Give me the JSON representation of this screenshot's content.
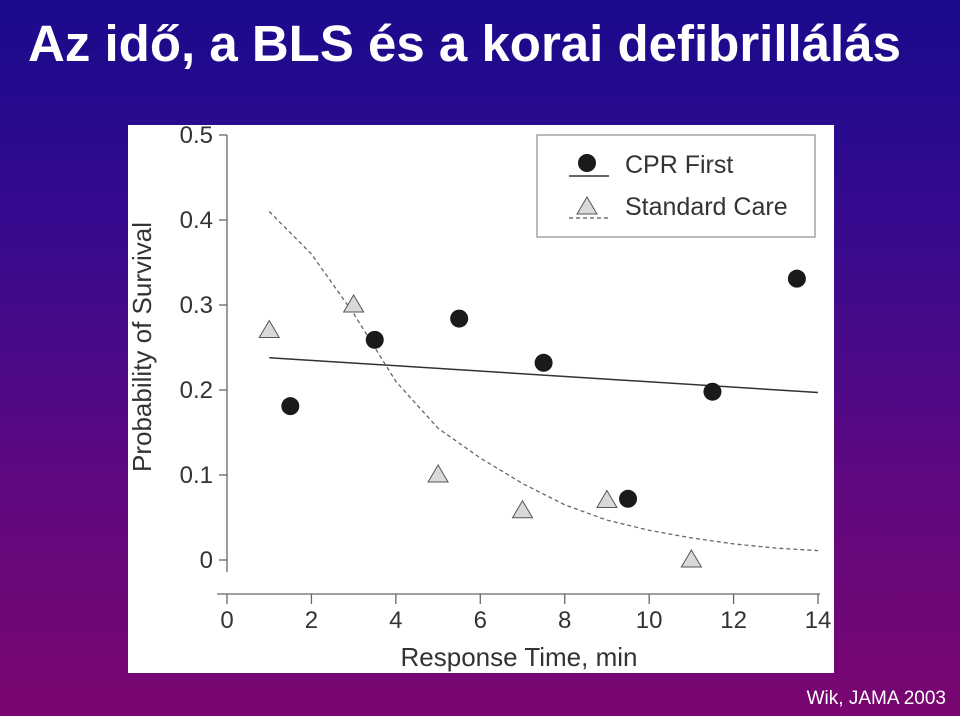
{
  "slide": {
    "title": "Az idő, a BLS és a korai defibrillálás",
    "citation": "Wik, JAMA 2003"
  },
  "chart_data": {
    "type": "scatter",
    "title": "",
    "xlabel": "Response Time, min",
    "ylabel": "Probability of Survival",
    "xlim": [
      0,
      14
    ],
    "ylim": [
      0,
      0.5
    ],
    "xticks": [
      0,
      2,
      4,
      6,
      8,
      10,
      12,
      14
    ],
    "yticks": [
      0,
      0.1,
      0.2,
      0.3,
      0.4,
      0.5
    ],
    "ytick_labels": [
      "0",
      "0.1",
      "0.2",
      "0.3",
      "0.4",
      "0.5"
    ],
    "legend_position": "top-right",
    "series": [
      {
        "name": "CPR First",
        "marker": "circle",
        "color": "#1a1a1a",
        "points": [
          {
            "x": 1.5,
            "y": 0.181
          },
          {
            "x": 3.5,
            "y": 0.259
          },
          {
            "x": 5.5,
            "y": 0.284
          },
          {
            "x": 7.5,
            "y": 0.232
          },
          {
            "x": 9.5,
            "y": 0.072
          },
          {
            "x": 11.5,
            "y": 0.198
          },
          {
            "x": 13.5,
            "y": 0.331
          }
        ],
        "fit_line": {
          "style": "solid",
          "points": [
            [
              1,
              0.238
            ],
            [
              14,
              0.197
            ]
          ]
        }
      },
      {
        "name": "Standard Care",
        "marker": "triangle",
        "color": "#d9d9d9",
        "points": [
          {
            "x": 1,
            "y": 0.27
          },
          {
            "x": 3,
            "y": 0.3
          },
          {
            "x": 5,
            "y": 0.1
          },
          {
            "x": 7,
            "y": 0.058
          },
          {
            "x": 9,
            "y": 0.07
          },
          {
            "x": 11,
            "y": 0.0
          }
        ],
        "fit_line": {
          "style": "dashed",
          "points": [
            [
              1,
              0.41
            ],
            [
              2,
              0.36
            ],
            [
              3,
              0.29
            ],
            [
              4,
              0.21
            ],
            [
              5,
              0.155
            ],
            [
              6,
              0.12
            ],
            [
              7,
              0.09
            ],
            [
              8,
              0.065
            ],
            [
              9,
              0.047
            ],
            [
              10,
              0.035
            ],
            [
              11,
              0.026
            ],
            [
              12,
              0.019
            ],
            [
              13,
              0.014
            ],
            [
              14,
              0.011
            ]
          ]
        }
      }
    ]
  }
}
